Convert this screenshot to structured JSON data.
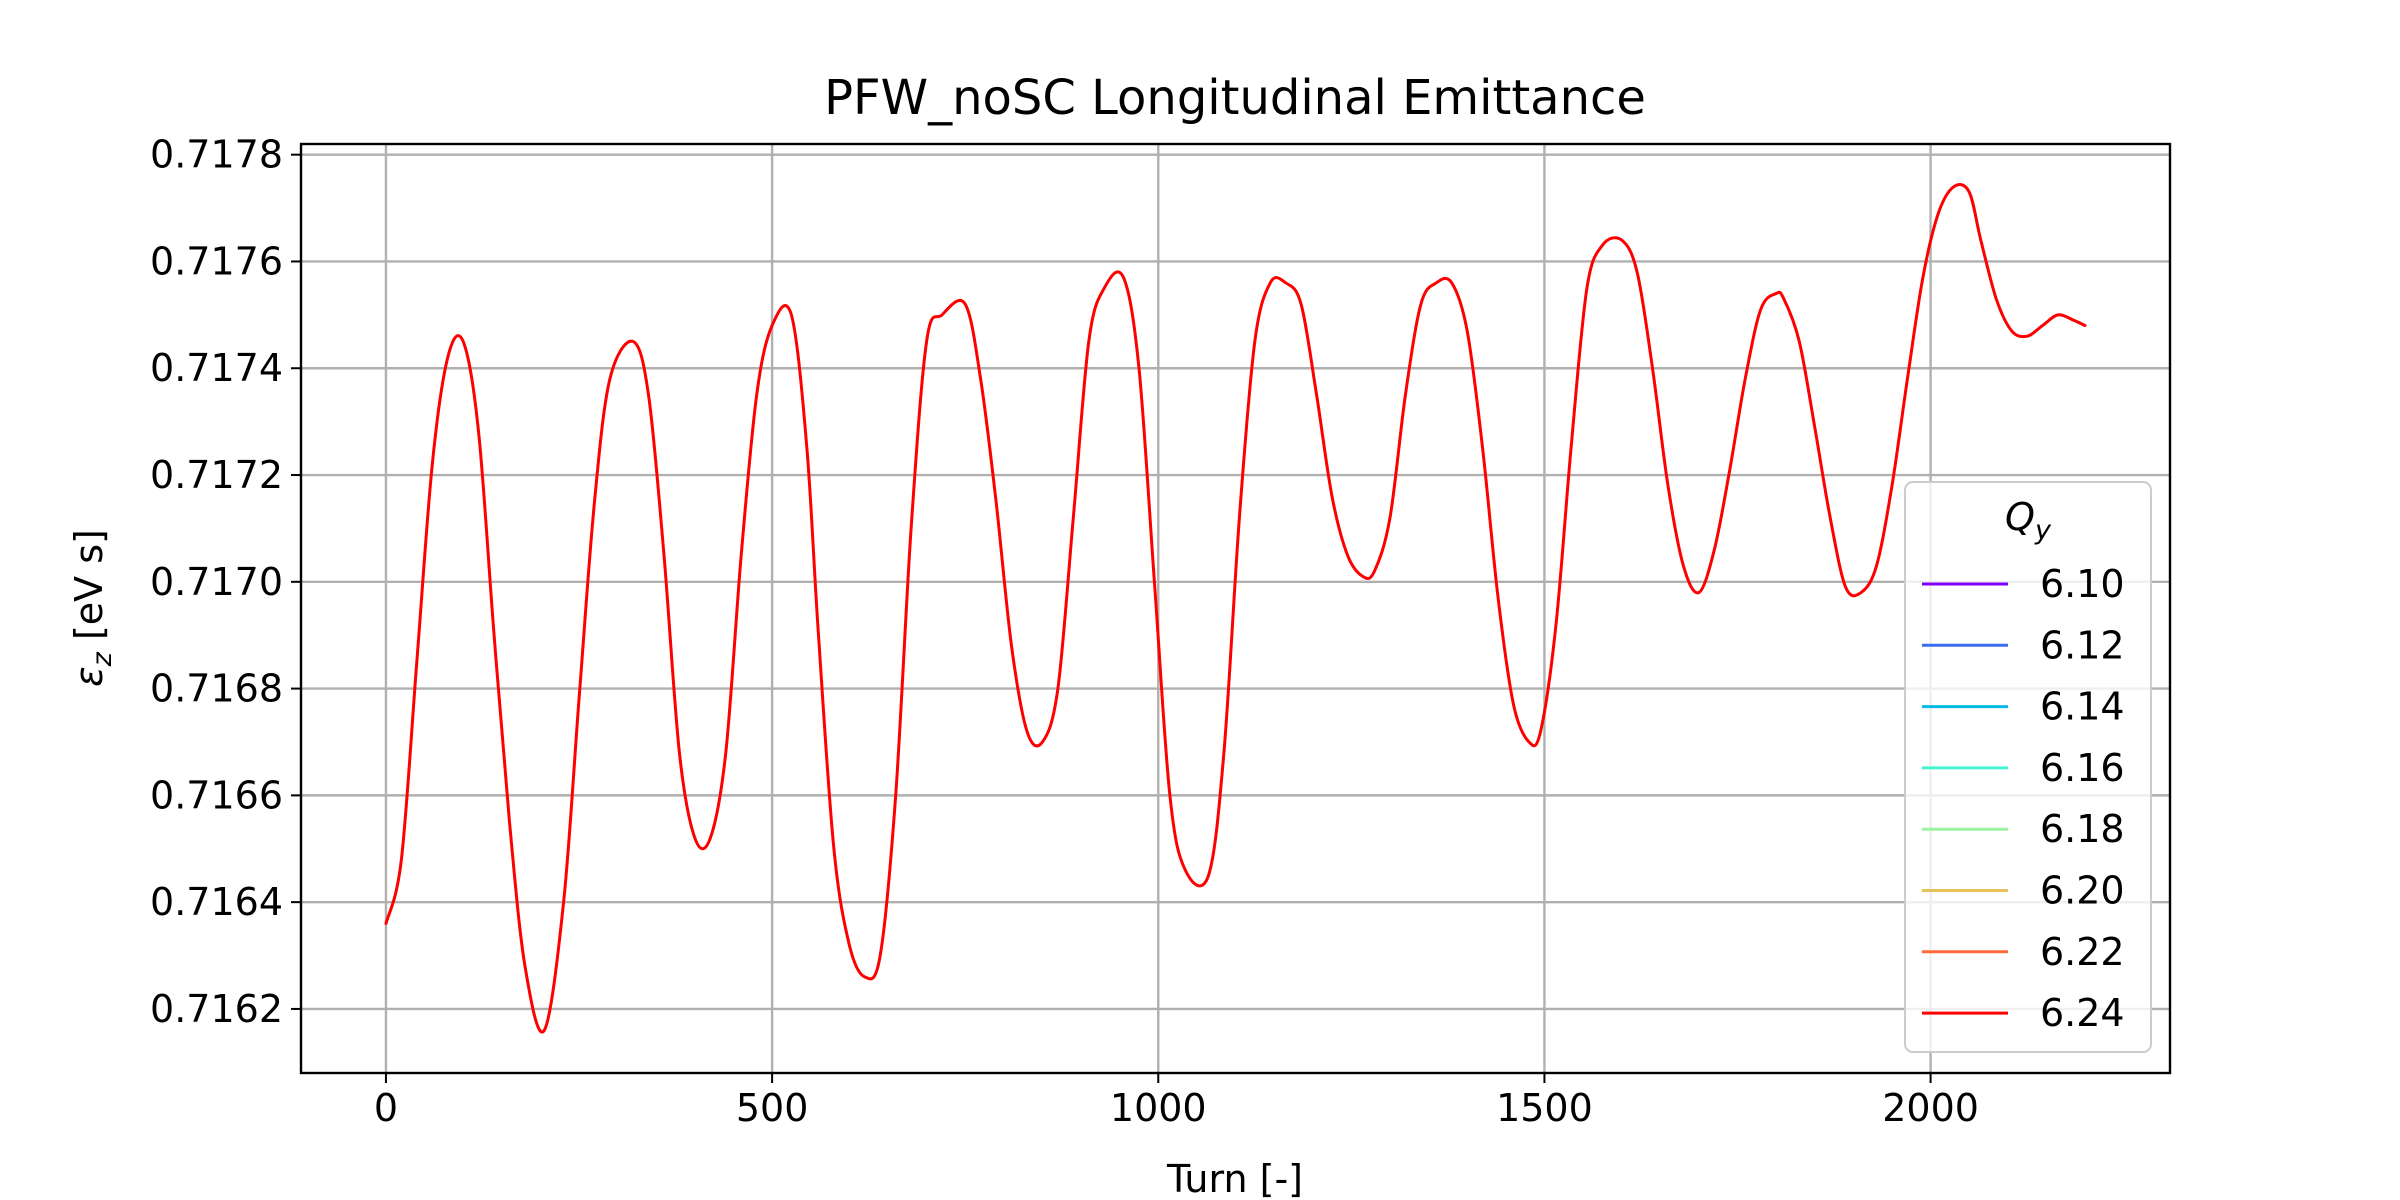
{
  "chart_data": {
    "type": "line",
    "title": "PFW_noSC Longitudinal Emittance",
    "xlabel": "Turn [-]",
    "ylabel_symbol": "ε",
    "ylabel_sub": "z",
    "ylabel_unit": " [eV s]",
    "xlim": [
      -110,
      2310
    ],
    "ylim": [
      0.71608,
      0.71782
    ],
    "xticks": [
      0,
      500,
      1000,
      1500,
      2000
    ],
    "xtick_labels": [
      "0",
      "500",
      "1000",
      "1500",
      "2000"
    ],
    "yticks": [
      0.7162,
      0.7164,
      0.7166,
      0.7168,
      0.717,
      0.7172,
      0.7174,
      0.7176,
      0.7178
    ],
    "ytick_labels": [
      "0.7162",
      "0.7164",
      "0.7166",
      "0.7168",
      "0.7170",
      "0.7172",
      "0.7174",
      "0.7176",
      "0.7178"
    ],
    "grid": true,
    "legend": {
      "title_symbol": "Q",
      "title_sub": "y",
      "placement": "lower-right",
      "entries": [
        {
          "label": "6.10",
          "color": "#7f00ff"
        },
        {
          "label": "6.12",
          "color": "#3c6df0"
        },
        {
          "label": "6.14",
          "color": "#04b9e6"
        },
        {
          "label": "6.16",
          "color": "#43f5d1"
        },
        {
          "label": "6.18",
          "color": "#9cf3a0"
        },
        {
          "label": "6.20",
          "color": "#e6c35a"
        },
        {
          "label": "6.22",
          "color": "#ff6a3a"
        },
        {
          "label": "6.24",
          "color": "#ff0000"
        }
      ]
    },
    "series": [
      {
        "name": "6.24",
        "color": "#ff0000",
        "x": [
          0,
          20,
          40,
          60,
          80,
          100,
          120,
          140,
          160,
          180,
          205,
          230,
          250,
          270,
          290,
          320,
          340,
          360,
          380,
          400,
          420,
          440,
          460,
          480,
          500,
          525,
          545,
          560,
          580,
          600,
          620,
          640,
          660,
          680,
          700,
          720,
          750,
          770,
          790,
          810,
          830,
          850,
          870,
          890,
          910,
          930,
          955,
          975,
          995,
          1015,
          1035,
          1065,
          1085,
          1105,
          1125,
          1145,
          1165,
          1185,
          1205,
          1225,
          1245,
          1265,
          1280,
          1300,
          1320,
          1340,
          1360,
          1380,
          1400,
          1420,
          1440,
          1460,
          1480,
          1495,
          1515,
          1535,
          1555,
          1575,
          1600,
          1620,
          1640,
          1660,
          1680,
          1700,
          1720,
          1740,
          1760,
          1780,
          1800,
          1810,
          1830,
          1850,
          1870,
          1890,
          1910,
          1930,
          1950,
          1970,
          1990,
          2010,
          2030,
          2050,
          2065,
          2085,
          2105,
          2125,
          2145,
          2165,
          2185,
          2200
        ],
        "values": [
          0.71636,
          0.71648,
          0.71685,
          0.71722,
          0.71742,
          0.71745,
          0.71728,
          0.7169,
          0.71655,
          0.71628,
          0.71616,
          0.7164,
          0.71678,
          0.71715,
          0.71738,
          0.71745,
          0.71735,
          0.71705,
          0.71668,
          0.71652,
          0.71652,
          0.71668,
          0.71705,
          0.71735,
          0.71748,
          0.7175,
          0.71725,
          0.7169,
          0.7165,
          0.71632,
          0.71626,
          0.7163,
          0.7166,
          0.7171,
          0.71745,
          0.7175,
          0.71752,
          0.71738,
          0.71715,
          0.71688,
          0.71672,
          0.7167,
          0.7168,
          0.71712,
          0.71745,
          0.71755,
          0.71757,
          0.7174,
          0.717,
          0.7166,
          0.71646,
          0.71645,
          0.71668,
          0.71712,
          0.71745,
          0.71756,
          0.71756,
          0.71752,
          0.71735,
          0.71716,
          0.71705,
          0.71701,
          0.71702,
          0.71712,
          0.71735,
          0.71752,
          0.71756,
          0.71756,
          0.71747,
          0.71725,
          0.71697,
          0.71677,
          0.7167,
          0.71672,
          0.71692,
          0.71726,
          0.71755,
          0.71763,
          0.71764,
          0.71758,
          0.7174,
          0.71718,
          0.71703,
          0.71698,
          0.71706,
          0.71721,
          0.71738,
          0.71751,
          0.71754,
          0.71753,
          0.71745,
          0.71729,
          0.71712,
          0.71699,
          0.71698,
          0.71703,
          0.71718,
          0.71738,
          0.71757,
          0.71769,
          0.71774,
          0.71773,
          0.71764,
          0.71753,
          0.71747,
          0.71746,
          0.71748,
          0.7175,
          0.71749,
          0.71748
        ]
      }
    ]
  }
}
